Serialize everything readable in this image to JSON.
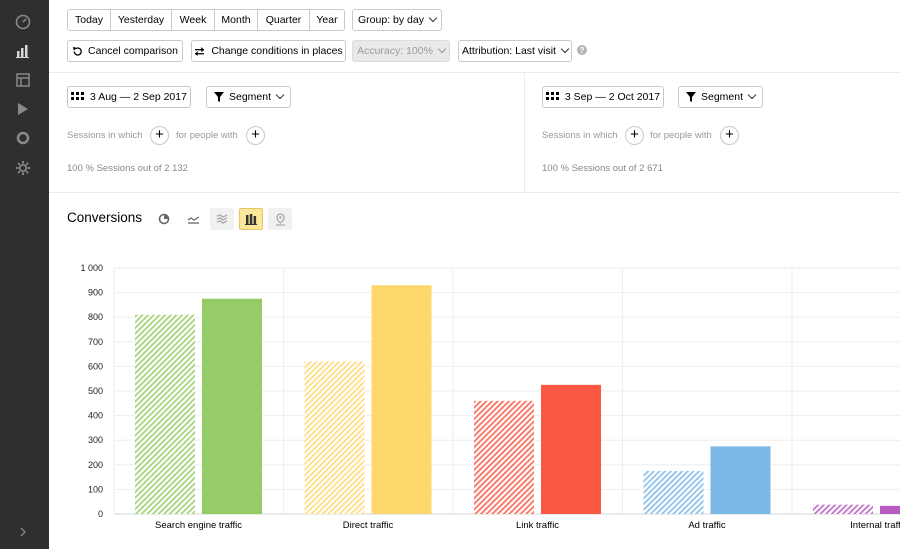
{
  "toolbar": {
    "periods": [
      "Today",
      "Yesterday",
      "Week",
      "Month",
      "Quarter",
      "Year"
    ],
    "group_by": "Group: by day",
    "cancel_comparison": "Cancel comparison",
    "change_conditions": "Change conditions in places",
    "accuracy": "Accuracy: 100%",
    "attribution": "Attribution: Last visit",
    "help": "?"
  },
  "left_segment": {
    "date_range": "3 Aug — 2 Sep 2017",
    "segment_label": "Segment",
    "sessions_in_which": "Sessions in which",
    "for_people_with": "for people with",
    "plus": "+",
    "summary": "100 % Sessions out of 2 132"
  },
  "right_segment": {
    "date_range": "3 Sep — 2 Oct 2017",
    "segment_label": "Segment",
    "sessions_in_which": "Sessions in which",
    "for_people_with": "for people with",
    "plus": "+",
    "summary": "100 % Sessions out of 2 671"
  },
  "chart_section": {
    "title": "Conversions",
    "view_icons": [
      "pie-chart-icon",
      "line-chart-icon",
      "area-chart-icon",
      "bar-chart-icon",
      "map-icon"
    ],
    "active_view": "bar-chart-icon"
  },
  "chart_data": {
    "type": "bar",
    "title": "Conversions",
    "categories": [
      "Search engine traffic",
      "Direct traffic",
      "Link traffic",
      "Ad traffic",
      "Internal traffic"
    ],
    "category_labels_shown": [
      "Search engine traffic",
      "Direct traffic",
      "Link traffic",
      "Ad traffic",
      "Internal traffi"
    ],
    "series": [
      {
        "name": "3 Aug — 2 Sep 2017",
        "style": "hatched",
        "values": [
          810,
          620,
          460,
          175,
          38
        ]
      },
      {
        "name": "3 Sep — 2 Oct 2017",
        "style": "solid",
        "values": [
          875,
          930,
          525,
          275,
          33
        ]
      }
    ],
    "colors": [
      "#96cc67",
      "#fed86d",
      "#fb5844",
      "#7cb8e6",
      "#b65cc0"
    ],
    "ylim": [
      0,
      1000
    ],
    "yticks": [
      0,
      100,
      200,
      300,
      400,
      500,
      600,
      700,
      800,
      900,
      1000
    ],
    "ytick_labels": [
      "0",
      "100",
      "200",
      "300",
      "400",
      "500",
      "600",
      "700",
      "800",
      "900",
      "1 000"
    ],
    "grid": true
  }
}
